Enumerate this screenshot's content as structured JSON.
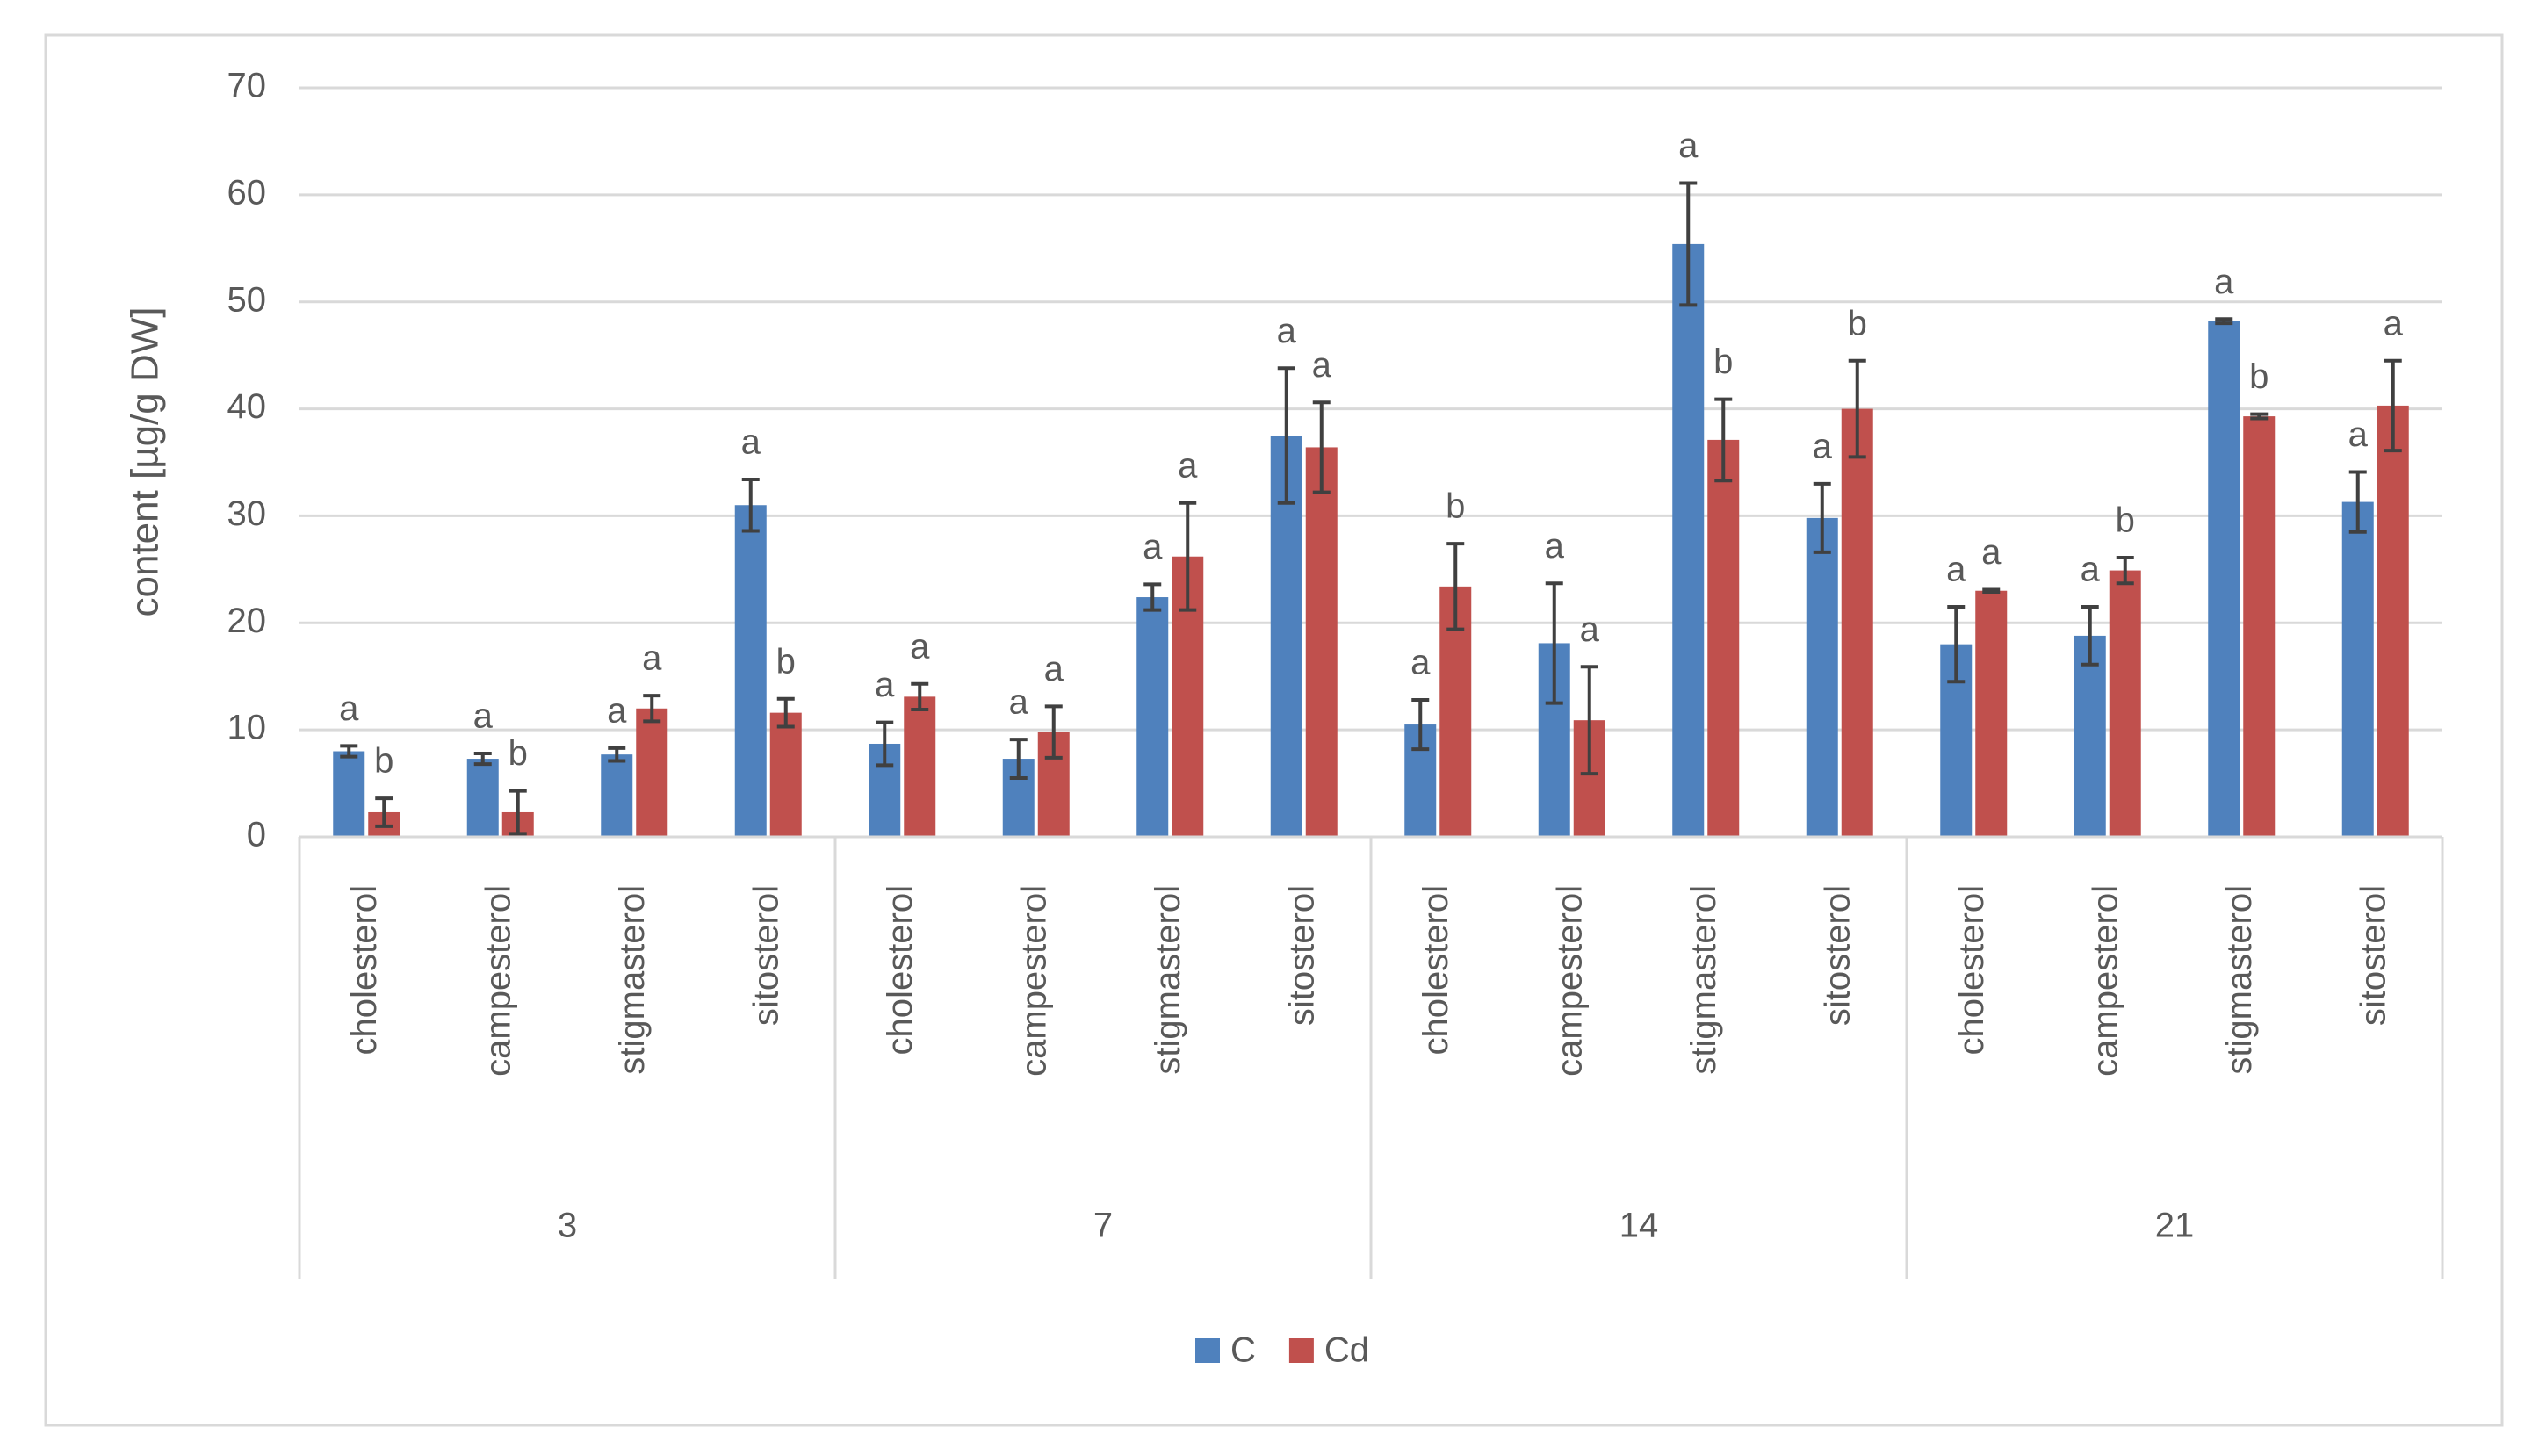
{
  "chart_data": {
    "type": "bar",
    "y_label": "content [µg/g DW]",
    "groups": [
      "3",
      "7",
      "14",
      "21"
    ],
    "categories": [
      "cholesterol",
      "campesterol",
      "stigmasterol",
      "sitosterol",
      "cholesterol",
      "campesterol",
      "stigmasterol",
      "sitosterol",
      "cholesterol",
      "campesterol",
      "stigmasterol",
      "sitosterol",
      "cholesterol",
      "campesterol",
      "stigmasterol",
      "sitosterol"
    ],
    "series": [
      {
        "name": "C",
        "color": "#4f81bd",
        "values": [
          8,
          7.3,
          7.7,
          31,
          8.7,
          7.3,
          22.4,
          37.5,
          10.5,
          18.1,
          55.4,
          29.8,
          18,
          18.8,
          48.2,
          31.3
        ],
        "errors": [
          0.5,
          0.5,
          0.6,
          2.4,
          2,
          1.8,
          1.2,
          6.3,
          2.3,
          5.6,
          5.7,
          3.2,
          3.5,
          2.7,
          0.2,
          2.8
        ],
        "letters": [
          "a",
          "a",
          "a",
          "a",
          "a",
          "a",
          "a",
          "a",
          "a",
          "a",
          "a",
          "a",
          "a",
          "a",
          "a",
          "a"
        ]
      },
      {
        "name": "Cd",
        "color": "#c0504d",
        "values": [
          2.3,
          2.3,
          12,
          11.6,
          13.1,
          9.8,
          26.2,
          36.4,
          23.4,
          10.9,
          37.1,
          40,
          23,
          24.9,
          39.3,
          40.3
        ],
        "errors": [
          1.3,
          2,
          1.2,
          1.3,
          1.2,
          2.4,
          5,
          4.2,
          4,
          5,
          3.8,
          4.5,
          0.1,
          1.2,
          0.2,
          4.2
        ],
        "letters": [
          "b",
          "b",
          "a",
          "b",
          "a",
          "a",
          "a",
          "a",
          "b",
          "a",
          "b",
          "b",
          "a",
          "b",
          "b",
          "a"
        ]
      }
    ],
    "ylim": [
      0,
      70
    ],
    "yticks": [
      0,
      10,
      20,
      30,
      40,
      50,
      60,
      70
    ],
    "grid": true,
    "legend": "bottom"
  }
}
